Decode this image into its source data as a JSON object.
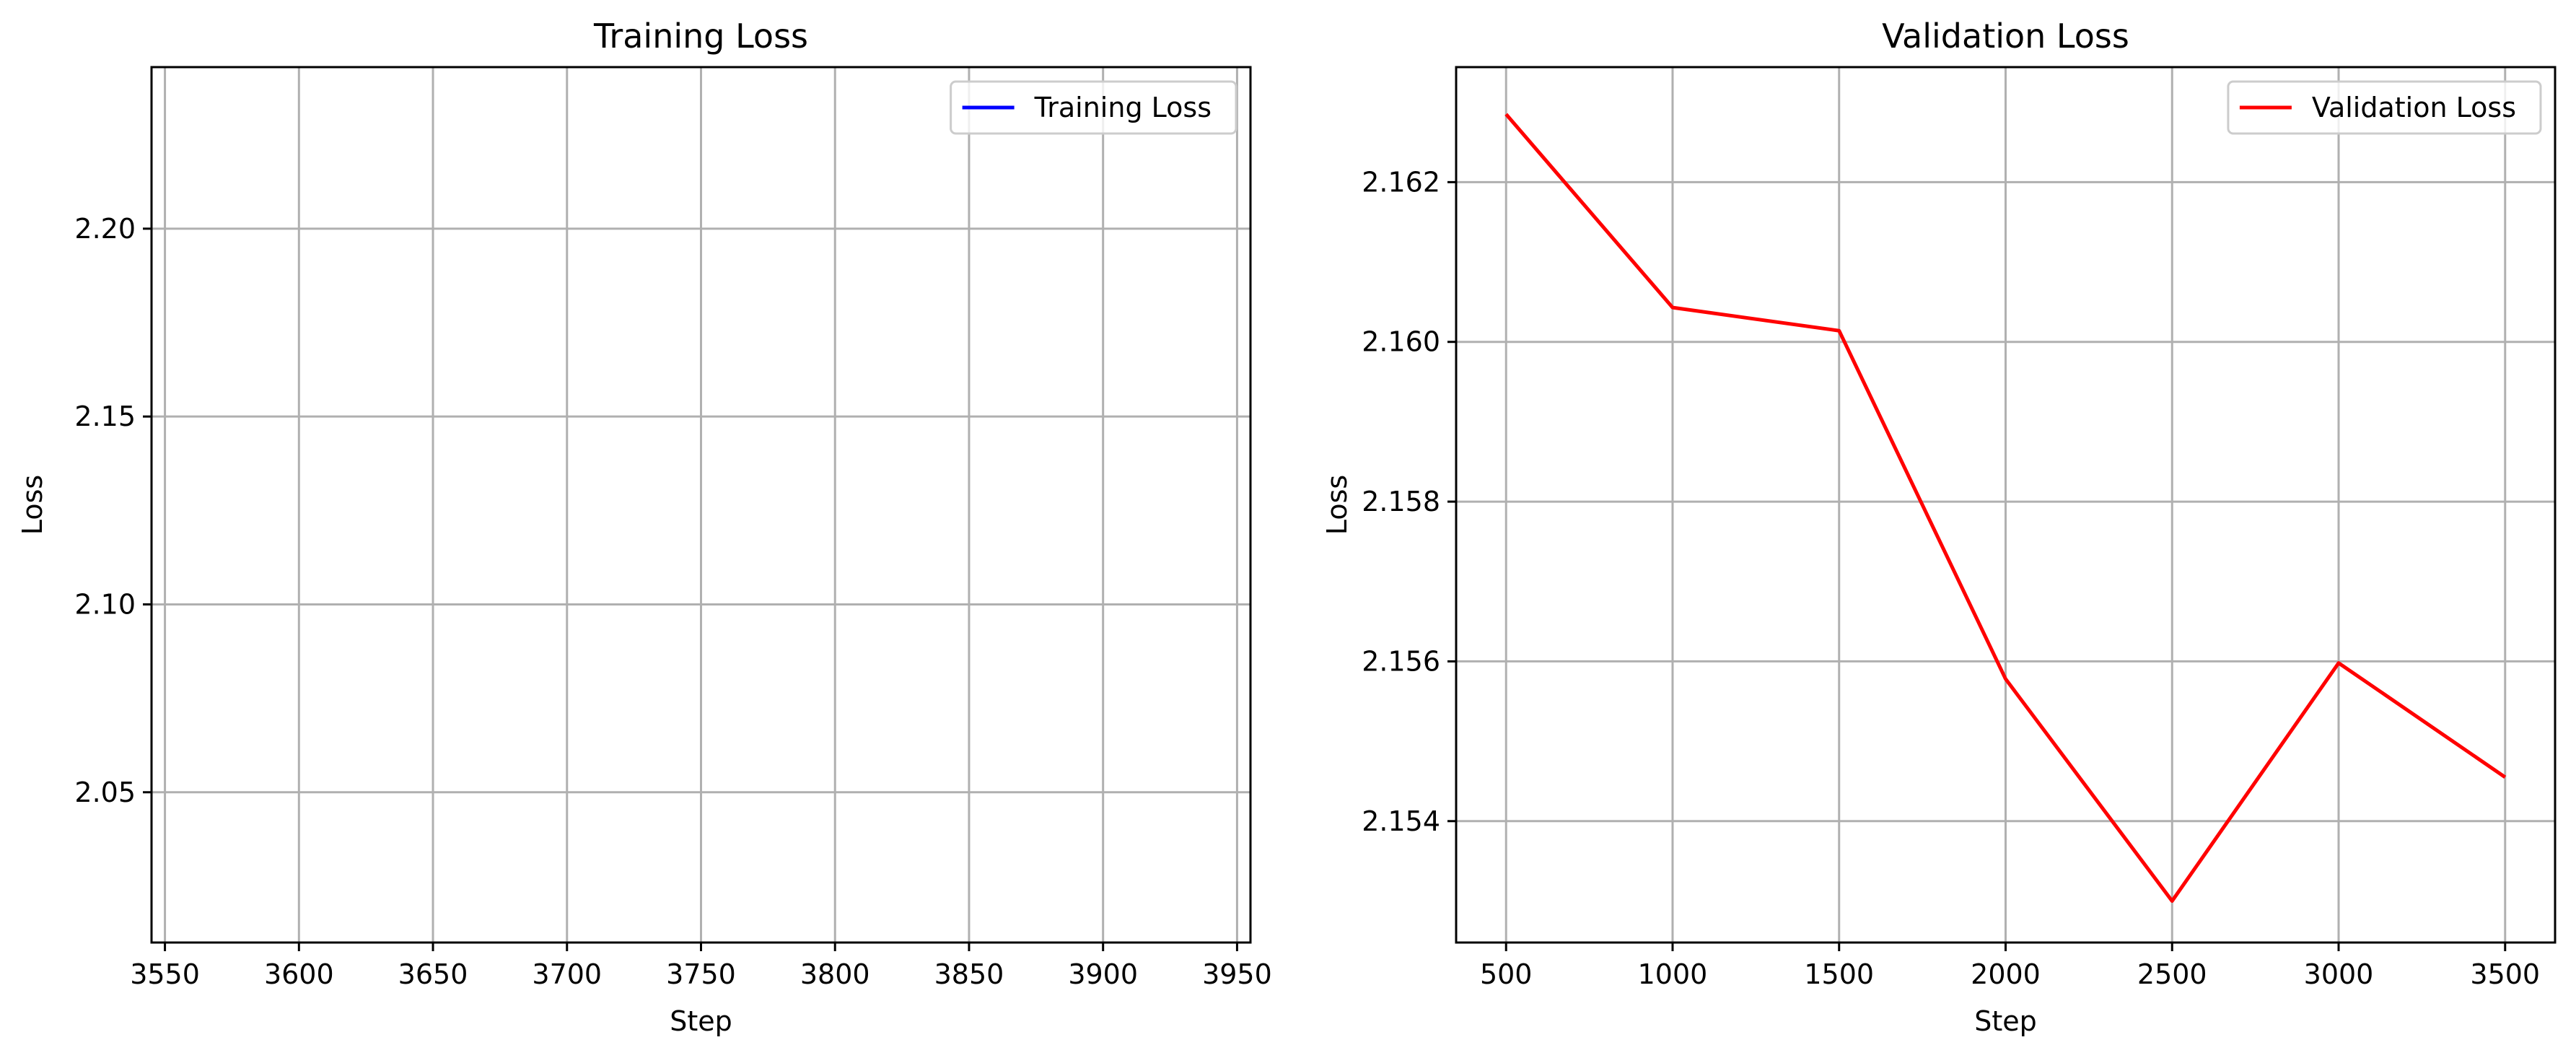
{
  "chart_data": [
    {
      "type": "line",
      "title": "Training Loss",
      "xlabel": "Step",
      "ylabel": "Loss",
      "xlim": [
        3545,
        3955
      ],
      "ylim": [
        2.01,
        2.243
      ],
      "x_ticks": [
        3550,
        3600,
        3650,
        3700,
        3750,
        3800,
        3850,
        3900,
        3950
      ],
      "y_ticks": [
        2.05,
        2.1,
        2.15,
        2.2
      ],
      "y_tick_labels": [
        "2.05",
        "2.10",
        "2.15",
        "2.20"
      ],
      "grid": true,
      "legend_position": "top-right",
      "series": [
        {
          "name": "Training Loss",
          "color": "#0000ff",
          "x": [],
          "y": []
        }
      ]
    },
    {
      "type": "line",
      "title": "Validation Loss",
      "xlabel": "Step",
      "ylabel": "Loss",
      "xlim": [
        350,
        3650
      ],
      "ylim": [
        2.15248,
        2.16344
      ],
      "x_ticks": [
        500,
        1000,
        1500,
        2000,
        2500,
        3000,
        3500
      ],
      "y_ticks": [
        2.154,
        2.156,
        2.158,
        2.16,
        2.162
      ],
      "y_tick_labels": [
        "2.154",
        "2.156",
        "2.158",
        "2.160",
        "2.162"
      ],
      "grid": true,
      "legend_position": "top-right",
      "series": [
        {
          "name": "Validation Loss",
          "color": "#ff0000",
          "x": [
            500,
            1000,
            1500,
            2000,
            2500,
            3000,
            3500
          ],
          "y": [
            2.16285,
            2.16043,
            2.16014,
            2.15578,
            2.153,
            2.15598,
            2.15455
          ]
        }
      ]
    }
  ]
}
